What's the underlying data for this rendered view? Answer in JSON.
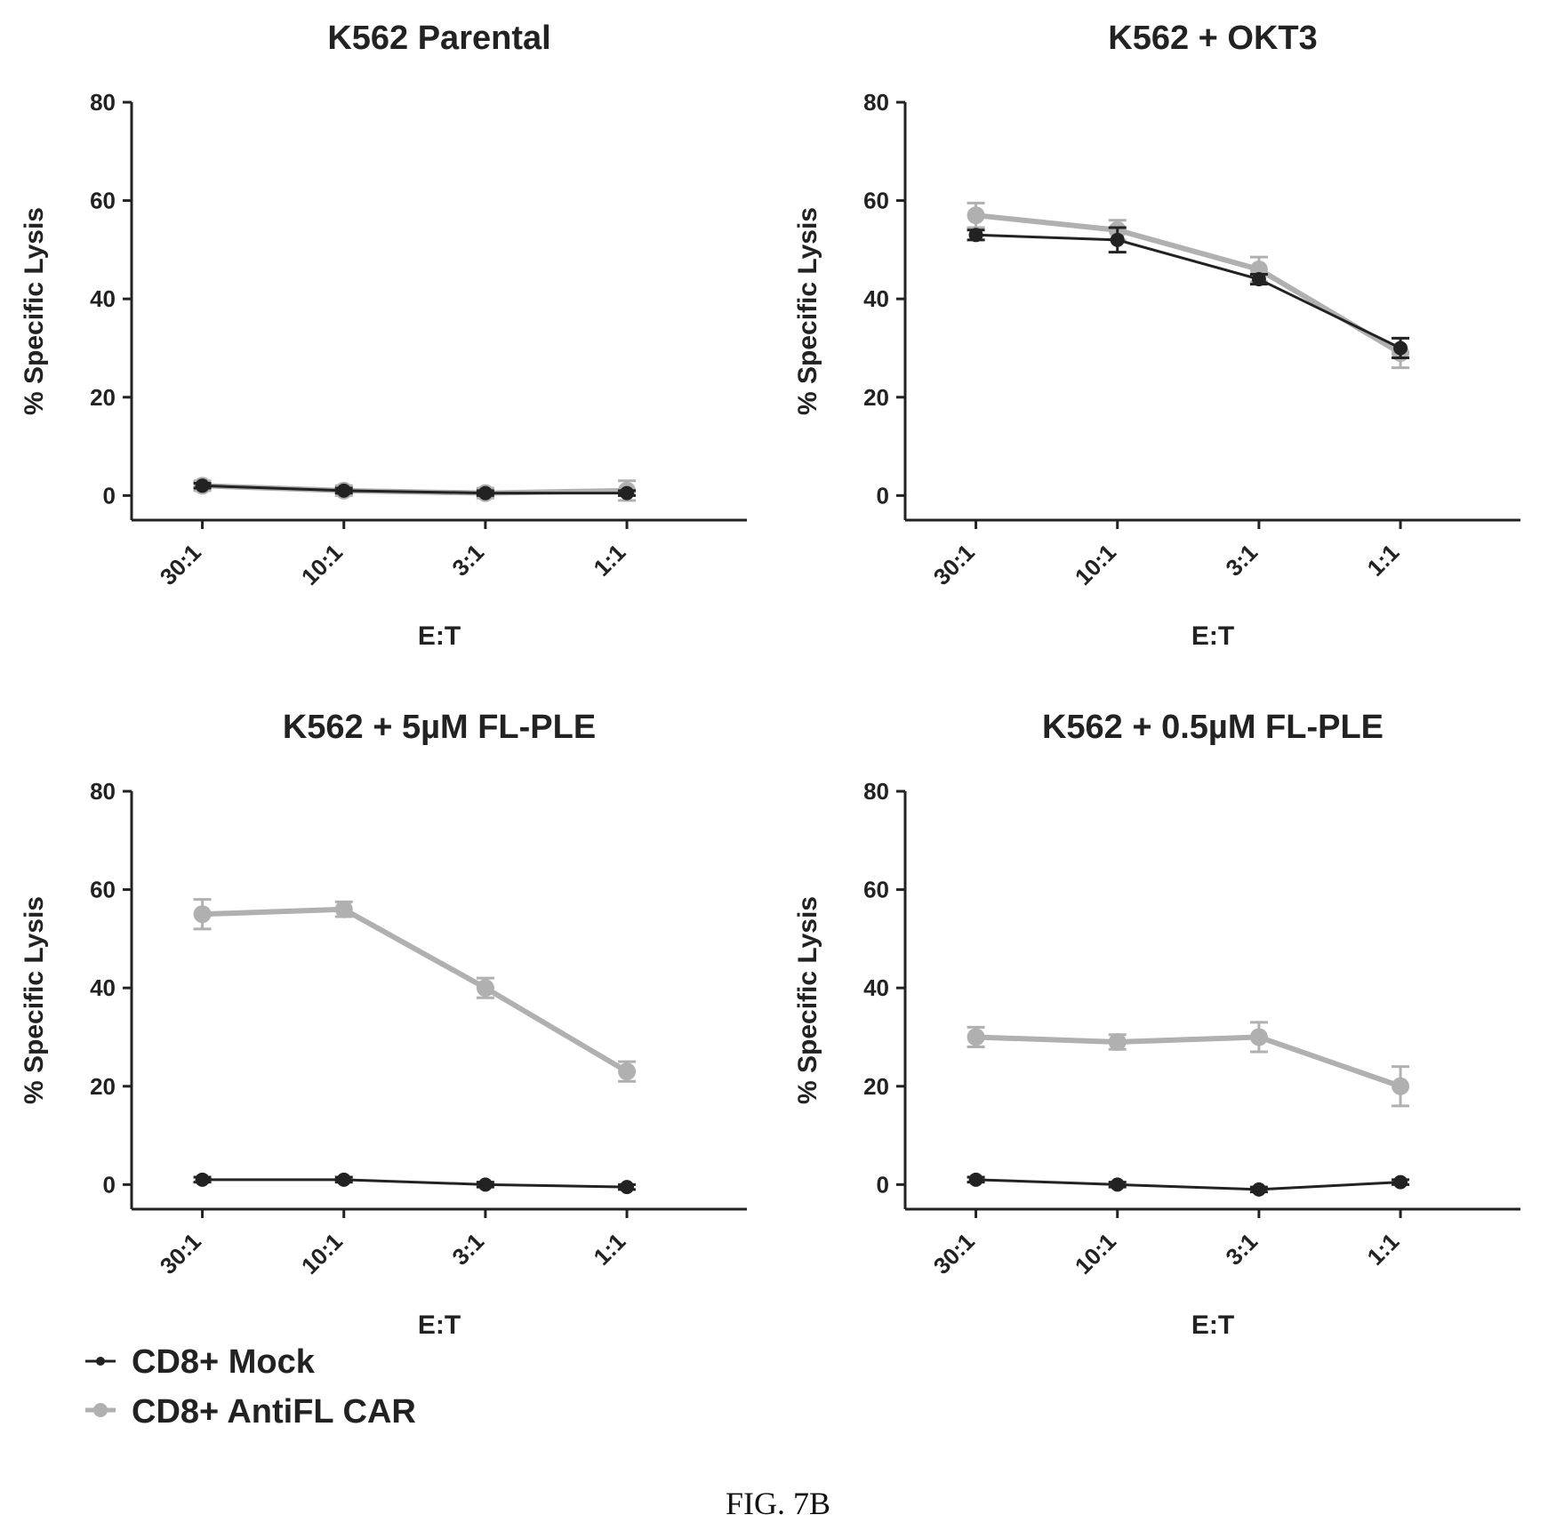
{
  "figure": {
    "caption": "FIG. 7B",
    "legend": [
      {
        "label": "CD8+ Mock",
        "color": "#222222"
      },
      {
        "label": "CD8+ AntiFL CAR",
        "color": "#b0b0b0"
      }
    ]
  },
  "chart_data": [
    {
      "type": "line",
      "title": "K562 Parental",
      "xlabel": "E:T",
      "ylabel": "% Specific Lysis",
      "categories": [
        "30:1",
        "10:1",
        "3:1",
        "1:1"
      ],
      "yticks": [
        0,
        20,
        40,
        60,
        80
      ],
      "ylim": [
        -5,
        80
      ],
      "grid": false,
      "series": [
        {
          "name": "CD8+ Mock",
          "color": "#222222",
          "values": [
            2,
            1,
            0.5,
            0.5
          ],
          "errors": [
            0.5,
            0.5,
            0.5,
            0.5
          ]
        },
        {
          "name": "CD8+ AntiFL CAR",
          "color": "#b0b0b0",
          "values": [
            2,
            1,
            0.5,
            1
          ],
          "errors": [
            1,
            1,
            1,
            2
          ]
        }
      ]
    },
    {
      "type": "line",
      "title": "K562 + OKT3",
      "xlabel": "E:T",
      "ylabel": "% Specific Lysis",
      "categories": [
        "30:1",
        "10:1",
        "3:1",
        "1:1"
      ],
      "yticks": [
        0,
        20,
        40,
        60,
        80
      ],
      "ylim": [
        -5,
        80
      ],
      "grid": false,
      "series": [
        {
          "name": "CD8+ Mock",
          "color": "#222222",
          "values": [
            53,
            52,
            44,
            30
          ],
          "errors": [
            1,
            2.5,
            1,
            2
          ]
        },
        {
          "name": "CD8+ AntiFL CAR",
          "color": "#b0b0b0",
          "values": [
            57,
            54,
            46,
            29
          ],
          "errors": [
            2.5,
            2,
            2.5,
            3
          ]
        }
      ]
    },
    {
      "type": "line",
      "title": "K562 + 5µM FL-PLE",
      "xlabel": "E:T",
      "ylabel": "% Specific Lysis",
      "categories": [
        "30:1",
        "10:1",
        "3:1",
        "1:1"
      ],
      "yticks": [
        0,
        20,
        40,
        60,
        80
      ],
      "ylim": [
        -5,
        80
      ],
      "grid": false,
      "series": [
        {
          "name": "CD8+ Mock",
          "color": "#222222",
          "values": [
            1,
            1,
            0,
            -0.5
          ],
          "errors": [
            0.5,
            0.5,
            0.5,
            0.5
          ]
        },
        {
          "name": "CD8+ AntiFL CAR",
          "color": "#b0b0b0",
          "values": [
            55,
            56,
            40,
            23
          ],
          "errors": [
            3,
            1.5,
            2,
            2
          ]
        }
      ]
    },
    {
      "type": "line",
      "title": "K562 + 0.5µM FL-PLE",
      "xlabel": "E:T",
      "ylabel": "% Specific Lysis",
      "categories": [
        "30:1",
        "10:1",
        "3:1",
        "1:1"
      ],
      "yticks": [
        0,
        20,
        40,
        60,
        80
      ],
      "ylim": [
        -5,
        80
      ],
      "grid": false,
      "series": [
        {
          "name": "CD8+ Mock",
          "color": "#222222",
          "values": [
            1,
            0,
            -1,
            0.5
          ],
          "errors": [
            0.5,
            0.5,
            0.5,
            0.5
          ]
        },
        {
          "name": "CD8+ AntiFL CAR",
          "color": "#b0b0b0",
          "values": [
            30,
            29,
            30,
            20
          ],
          "errors": [
            2,
            1.5,
            3,
            4
          ]
        }
      ]
    }
  ]
}
